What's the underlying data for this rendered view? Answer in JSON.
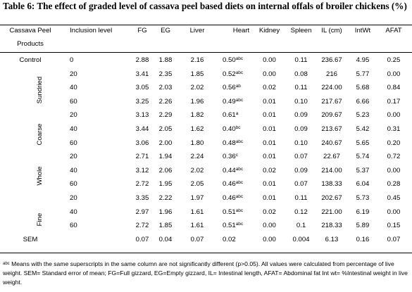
{
  "title": "Table 6:  The effect of graded level of cassava peel based diets on internal offals of broiler chickens (%)",
  "headers": {
    "product_line1": "Cassava Peel",
    "product_line2": "Products",
    "level": "Inclusion level",
    "fg": "FG",
    "eg": "EG",
    "liver": "Liver",
    "heart": "Heart",
    "kidney": "Kidney",
    "spleen": "Spleen",
    "il": "IL (cm)",
    "intwt": "IntWt",
    "afat": "AFAT"
  },
  "groups": [
    "Control",
    "Sundried",
    "Coarse",
    "Whole",
    "Fine",
    "SEM"
  ],
  "rows": [
    {
      "level": "0",
      "fg": "2.88",
      "eg": "1.88",
      "liver": "2.16",
      "heart": "0.50",
      "heart_sup": "abc",
      "kidney": "0.00",
      "spleen": "0.11",
      "il": "236.67",
      "intwt": "4.95",
      "afat": "0.25"
    },
    {
      "level": "20",
      "fg": "3.41",
      "eg": "2.35",
      "liver": "1.85",
      "heart": "0.52",
      "heart_sup": "abc",
      "kidney": "0.00",
      "spleen": "0.08",
      "il": "216",
      "intwt": "5.77",
      "afat": "0.00"
    },
    {
      "level": "40",
      "fg": "3.05",
      "eg": "2.03",
      "liver": "2.02",
      "heart": "0.56",
      "heart_sup": "ab",
      "kidney": "0.02",
      "spleen": "0.11",
      "il": "224.00",
      "intwt": "5.68",
      "afat": "0.84"
    },
    {
      "level": "60",
      "fg": "3.25",
      "eg": "2.26",
      "liver": "1.96",
      "heart": "0.49",
      "heart_sup": "abc",
      "kidney": "0.01",
      "spleen": "0.10",
      "il": "217.67",
      "intwt": "6.66",
      "afat": "0.17"
    },
    {
      "level": "20",
      "fg": "3.13",
      "eg": "2.29",
      "liver": "1.82",
      "heart": "0.61",
      "heart_sup": "a",
      "kidney": "0.01",
      "spleen": "0.09",
      "il": "209.67",
      "intwt": "5.23",
      "afat": "0.00"
    },
    {
      "level": "40",
      "fg": "3.44",
      "eg": "2.05",
      "liver": "1.62",
      "heart": "0.40",
      "heart_sup": "bc",
      "kidney": "0.01",
      "spleen": "0.09",
      "il": "213.67",
      "intwt": "5.42",
      "afat": "0.31"
    },
    {
      "level": "60",
      "fg": "3.06",
      "eg": "2.00",
      "liver": "1.80",
      "heart": "0.48",
      "heart_sup": "abc",
      "kidney": "0.01",
      "spleen": "0.10",
      "il": "240.67",
      "intwt": "5.65",
      "afat": "0.20"
    },
    {
      "level": "20",
      "fg": "2.71",
      "eg": "1.94",
      "liver": "2.24",
      "heart": "0.36",
      "heart_sup": "c",
      "kidney": "0.01",
      "spleen": "0.07",
      "il": "22.67",
      "intwt": "5.74",
      "afat": "0.72"
    },
    {
      "level": "40",
      "fg": "3.12",
      "eg": "2.06",
      "liver": "2.02",
      "heart": "0.44",
      "heart_sup": "abc",
      "kidney": "0.02",
      "spleen": "0.09",
      "il": "214.00",
      "intwt": "5.37",
      "afat": "0.00"
    },
    {
      "level": "60",
      "fg": "2.72",
      "eg": "1.95",
      "liver": "2.05",
      "heart": "0.46",
      "heart_sup": "abc",
      "kidney": "0.01",
      "spleen": "0.07",
      "il": "138.33",
      "intwt": "6.04",
      "afat": "0.28"
    },
    {
      "level": "20",
      "fg": "3.35",
      "eg": "2.22",
      "liver": "1.97",
      "heart": "0.46",
      "heart_sup": "abc",
      "kidney": "0.01",
      "spleen": "0.11",
      "il": "202.67",
      "intwt": "5.73",
      "afat": "0.45"
    },
    {
      "level": "40",
      "fg": "2.97",
      "eg": "1.96",
      "liver": "1.61",
      "heart": "0.51",
      "heart_sup": "abc",
      "kidney": "0.02",
      "spleen": "0.12",
      "il": "221.00",
      "intwt": "6.19",
      "afat": "0.00"
    },
    {
      "level": "60",
      "fg": "2.72",
      "eg": "1.85",
      "liver": "1.61",
      "heart": "0.51",
      "heart_sup": "abc",
      "kidney": "0.00",
      "spleen": "0.1",
      "il": "218.33",
      "intwt": "5.89",
      "afat": "0.15"
    },
    {
      "level": "",
      "fg": "0.07",
      "eg": "0.04",
      "liver": "0.07",
      "heart": "0.02",
      "heart_sup": "",
      "kidney": "0.00",
      "spleen": "0.004",
      "il": "6.13",
      "intwt": "0.16",
      "afat": "0.07"
    }
  ],
  "footnote": {
    "sup": "abc",
    "text": " Means with the same superscripts in the same column are not significantly different (p>0.05). All values were calculated from percentage of live weight. SEM= Standard error of mean; FG=Full gizzard, EG=Empty gizzard, IL= Intestinal length, AFAT= Abdominal fat Int wt= %Intestinal weight in live weight."
  }
}
